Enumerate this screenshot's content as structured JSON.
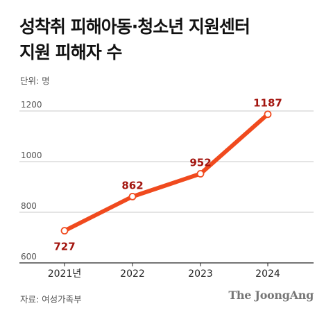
{
  "header": {
    "title_line1": "성착취 피해아동·청소년 지원센터",
    "title_line2": "지원 피해자 수"
  },
  "unit_label": "단위: 명",
  "source_label": "자료: 여성가족부",
  "brand": "The JoongAng",
  "colors": {
    "line": "#f04a1e",
    "value_label": "#a3150f",
    "grid": "#c8c8c8",
    "axis": "#222222"
  },
  "chart_data": {
    "type": "line",
    "title": "성착취 피해아동·청소년 지원센터 지원 피해자 수",
    "xlabel": "",
    "ylabel": "단위: 명",
    "categories": [
      "2021년",
      "2022",
      "2023",
      "2024"
    ],
    "values": [
      727,
      862,
      952,
      1187
    ],
    "value_labels": [
      "727",
      "862",
      "952",
      "1187"
    ],
    "ylim": [
      600,
      1200
    ],
    "yticks": [
      600,
      800,
      1000,
      1200
    ],
    "ytick_labels": [
      "600",
      "800",
      "1000",
      "1200"
    ],
    "grid": true,
    "legend": "none"
  }
}
